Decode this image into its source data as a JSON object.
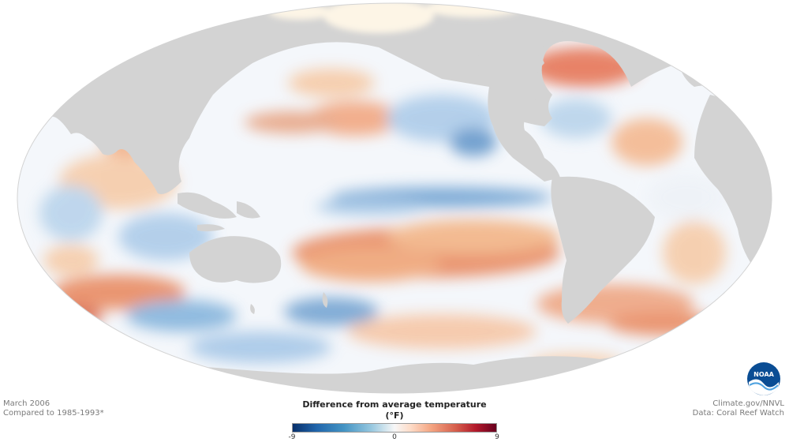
{
  "footer": {
    "date": "March 2006",
    "baseline": "Compared to 1985-1993*",
    "source_site": "Climate.gov/NNVL",
    "data_credit": "Data: Coral Reef Watch"
  },
  "legend": {
    "title": "Difference from average temperature (°F)",
    "min_label": "-9",
    "mid_label": "0",
    "max_label": "9",
    "colors": [
      "#08306b",
      "#2166ac",
      "#4393c3",
      "#92c5de",
      "#f7f7f7",
      "#fddbc7",
      "#f4a582",
      "#d6604d",
      "#b2182b",
      "#67001f"
    ]
  },
  "map": {
    "land_color": "#d3d3d3",
    "ice_color": "#fdf5e6"
  },
  "logo": {
    "text": "NOAA",
    "color": "#0a4d94"
  }
}
